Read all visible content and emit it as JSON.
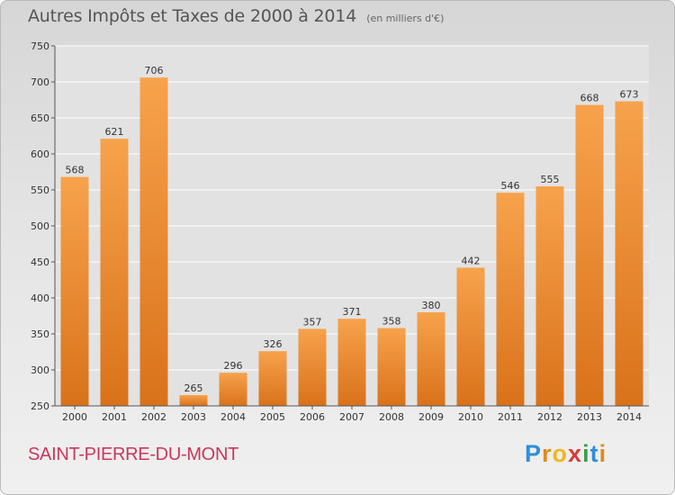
{
  "chart_data": {
    "type": "bar",
    "title": "Autres Impôts et Taxes de 2000 à 2014",
    "subtitle": "(en milliers d'€)",
    "categories": [
      "2000",
      "2001",
      "2002",
      "2003",
      "2004",
      "2005",
      "2006",
      "2007",
      "2008",
      "2009",
      "2010",
      "2011",
      "2012",
      "2013",
      "2014"
    ],
    "values": [
      568,
      621,
      706,
      265,
      296,
      326,
      357,
      371,
      358,
      380,
      442,
      546,
      555,
      668,
      673
    ],
    "ylim": [
      250,
      750
    ],
    "yticks": [
      250,
      300,
      350,
      400,
      450,
      500,
      550,
      600,
      650,
      700,
      750
    ],
    "grid": true,
    "bar_color": "#f28a2a"
  },
  "commune": "SAINT-PIERRE-DU-MONT",
  "brand": {
    "letters": [
      "P",
      "r",
      "o",
      "x",
      "i",
      "t",
      "i"
    ],
    "colors": [
      "#2e8fd8",
      "#e08a1e",
      "#f0b81e",
      "#d93a3a",
      "#3aa04a",
      "#2e8fd8",
      "#e08a1e"
    ]
  }
}
